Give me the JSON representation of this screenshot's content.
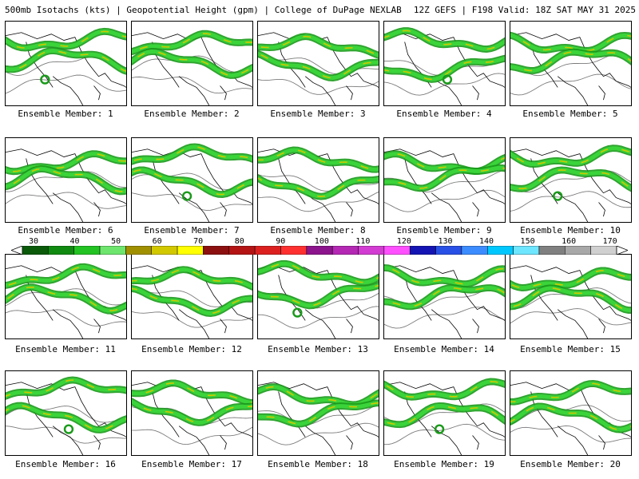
{
  "header": {
    "left_title": "500mb Isotachs (kts) | Geopotential Height (gpm) | College of DuPage NEXLAB",
    "right_title": "12Z GEFS | F198 Valid: 18Z SAT MAY 31 2025"
  },
  "panels": [
    {
      "label": "Ensemble Member: 1"
    },
    {
      "label": "Ensemble Member: 2"
    },
    {
      "label": "Ensemble Member: 3"
    },
    {
      "label": "Ensemble Member: 4"
    },
    {
      "label": "Ensemble Member: 5"
    },
    {
      "label": "Ensemble Member: 6"
    },
    {
      "label": "Ensemble Member: 7"
    },
    {
      "label": "Ensemble Member: 8"
    },
    {
      "label": "Ensemble Member: 9"
    },
    {
      "label": "Ensemble Member: 10"
    },
    {
      "label": "Ensemble Member: 11"
    },
    {
      "label": "Ensemble Member: 12"
    },
    {
      "label": "Ensemble Member: 13"
    },
    {
      "label": "Ensemble Member: 14"
    },
    {
      "label": "Ensemble Member: 15"
    },
    {
      "label": "Ensemble Member: 16"
    },
    {
      "label": "Ensemble Member: 17"
    },
    {
      "label": "Ensemble Member: 18"
    },
    {
      "label": "Ensemble Member: 19"
    },
    {
      "label": "Ensemble Member: 20"
    }
  ],
  "colorbar": {
    "tick_labels": [
      "30",
      "40",
      "50",
      "60",
      "70",
      "80",
      "90",
      "100",
      "110",
      "120",
      "130",
      "140",
      "150",
      "160",
      "170"
    ],
    "colors": [
      "#0a5a0a",
      "#108a10",
      "#22c322",
      "#6ee66e",
      "#a09000",
      "#d2c800",
      "#ffff00",
      "#8c1010",
      "#b41414",
      "#dc2020",
      "#ff3030",
      "#8c148c",
      "#b428b4",
      "#d23cd2",
      "#ff50ff",
      "#1414b4",
      "#2850e6",
      "#3c8cff",
      "#00c8ff",
      "#6ee6ff",
      "#808080",
      "#a8a8a8",
      "#d0d0d0"
    ]
  }
}
